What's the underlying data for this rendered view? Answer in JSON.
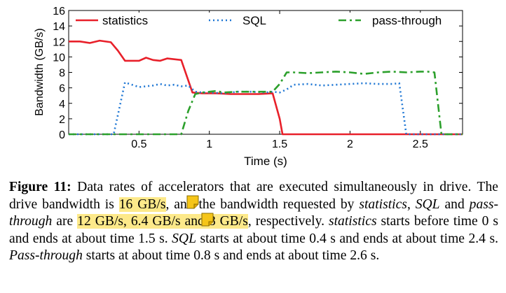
{
  "chart_data": {
    "type": "line",
    "xlabel": "Time (s)",
    "ylabel": "Bandwidth (GB/s)",
    "xlim": [
      0,
      2.8
    ],
    "ylim": [
      0,
      16
    ],
    "xticks": [
      0.5,
      1,
      1.5,
      2,
      2.5
    ],
    "xtick_labels": [
      "0.5",
      "1",
      "1.5",
      "2",
      "2.5"
    ],
    "yticks": [
      0,
      2,
      4,
      6,
      8,
      10,
      12,
      14,
      16
    ],
    "ytick_labels": [
      "0",
      "2",
      "4",
      "6",
      "8",
      "10",
      "12",
      "14",
      "16"
    ],
    "grid": false,
    "legend_position": "top",
    "series": [
      {
        "name": "statistics",
        "style": "solid",
        "color": "#e8202a",
        "x": [
          0,
          0.08,
          0.15,
          0.22,
          0.3,
          0.35,
          0.4,
          0.45,
          0.5,
          0.55,
          0.6,
          0.65,
          0.7,
          0.75,
          0.8,
          0.88,
          0.95,
          1.05,
          1.15,
          1.25,
          1.35,
          1.45,
          1.5,
          1.52,
          1.6,
          1.8,
          2.0,
          2.2,
          2.4,
          2.6,
          2.8
        ],
        "y": [
          12.0,
          12.0,
          11.8,
          12.1,
          11.9,
          10.8,
          9.5,
          9.5,
          9.5,
          9.9,
          9.6,
          9.5,
          9.8,
          9.7,
          9.6,
          5.4,
          5.3,
          5.3,
          5.2,
          5.2,
          5.2,
          5.3,
          2.0,
          0.0,
          0.0,
          0.0,
          0.0,
          0.0,
          0.0,
          0.0,
          0.0
        ]
      },
      {
        "name": "SQL",
        "style": "dotted",
        "color": "#1f77d4",
        "x": [
          0,
          0.2,
          0.32,
          0.4,
          0.45,
          0.5,
          0.55,
          0.6,
          0.65,
          0.7,
          0.75,
          0.8,
          0.85,
          0.9,
          0.95,
          1.0,
          1.1,
          1.2,
          1.3,
          1.4,
          1.45,
          1.5,
          1.55,
          1.6,
          1.7,
          1.8,
          1.9,
          2.0,
          2.1,
          2.2,
          2.3,
          2.35,
          2.4,
          2.5,
          2.6,
          2.8
        ],
        "y": [
          0.0,
          0.0,
          0.0,
          6.7,
          6.4,
          6.1,
          6.2,
          6.3,
          6.5,
          6.3,
          6.4,
          6.2,
          6.3,
          5.5,
          5.4,
          5.4,
          5.3,
          5.5,
          5.5,
          5.4,
          5.5,
          5.4,
          5.8,
          6.4,
          6.5,
          6.3,
          6.4,
          6.5,
          6.6,
          6.5,
          6.5,
          6.6,
          0.0,
          0.0,
          0.0,
          0.0
        ]
      },
      {
        "name": "pass-through",
        "style": "dashdot",
        "color": "#2ca02c",
        "x": [
          0,
          0.3,
          0.6,
          0.8,
          0.85,
          0.9,
          0.95,
          1.0,
          1.05,
          1.1,
          1.2,
          1.3,
          1.4,
          1.45,
          1.5,
          1.55,
          1.6,
          1.7,
          1.8,
          1.9,
          2.0,
          2.1,
          2.2,
          2.3,
          2.4,
          2.5,
          2.55,
          2.6,
          2.65,
          2.8
        ],
        "y": [
          0.0,
          0.0,
          0.0,
          0.0,
          3.0,
          5.2,
          5.4,
          5.5,
          5.6,
          5.4,
          5.5,
          5.5,
          5.5,
          5.5,
          6.5,
          8.0,
          8.0,
          7.9,
          8.0,
          8.1,
          8.0,
          7.8,
          8.0,
          8.1,
          8.0,
          8.1,
          8.1,
          8.0,
          0.0,
          0.0
        ]
      }
    ]
  },
  "caption": {
    "label": "Figure 11:",
    "t1": " Data rates of accelerators that are executed simultaneously in drive. The drive bandwidth is ",
    "hl1": "16 GB/s",
    "t2": ", and the bandwidth requested by ",
    "em1": "statistics",
    "t3": ", ",
    "em2": "SQL",
    "t4": " and ",
    "em3": "pass-through",
    "t5": " are ",
    "hl2": "12 GB/s, 6.4 GB/s and 8 GB/s",
    "t6": ", respectively. ",
    "em4": "statistics",
    "t7": " starts before time 0 s and ends at about time 1.5 s. ",
    "em5": "SQL",
    "t8": " starts at about time 0.4 s and ends at about time 2.4 s. ",
    "em6": "Pass-through",
    "t9": " starts at about time 0.8 s and ends at about time 2.6 s."
  },
  "colors": {
    "highlight": "#fde98a",
    "note_icon": "#f5c518"
  }
}
